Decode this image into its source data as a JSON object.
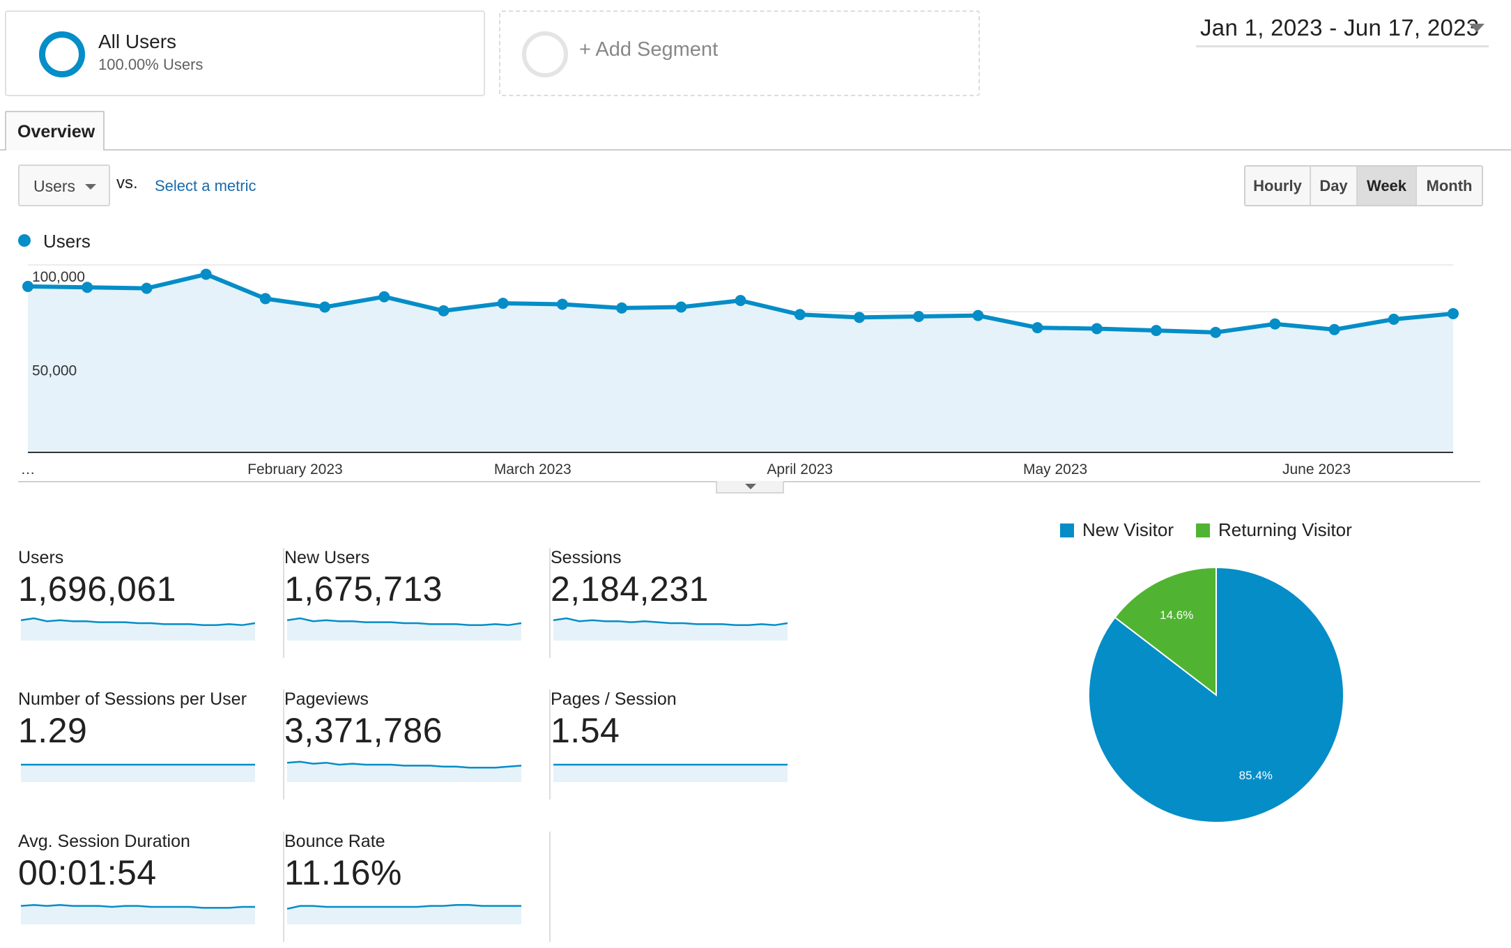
{
  "segments": {
    "all_users": {
      "title": "All Users",
      "subtitle": "100.00% Users"
    },
    "add_segment": {
      "label": "+ Add Segment"
    }
  },
  "date_range": "Jan 1, 2023 - Jun 17, 2023",
  "tabs": [
    {
      "label": "Overview",
      "active": true
    }
  ],
  "metric_selector": {
    "value": "Users",
    "vs": "vs.",
    "select_metric": "Select a metric"
  },
  "granularity": {
    "options": [
      "Hourly",
      "Day",
      "Week",
      "Month"
    ],
    "selected": "Week"
  },
  "colors": {
    "primary": "#058dc7",
    "secondary": "#50b432",
    "area": "#e5f2f9"
  },
  "chart_data": [
    {
      "type": "area",
      "series": [
        {
          "name": "Users",
          "values": [
            88500,
            88000,
            87500,
            95000,
            82000,
            77500,
            83000,
            75500,
            79500,
            79000,
            77000,
            77500,
            81000,
            73500,
            72000,
            72500,
            73000,
            66500,
            66000,
            65000,
            64000,
            68500,
            65500,
            71000,
            74000
          ]
        }
      ],
      "ylim": [
        0,
        100000
      ],
      "y_ticks": [
        "100,000",
        "50,000"
      ],
      "x_ticks": [
        "…",
        "February 2023",
        "March 2023",
        "April 2023",
        "May 2023",
        "June 2023"
      ],
      "grid": true
    },
    {
      "type": "pie",
      "slices": [
        {
          "label": "New Visitor",
          "value": 85.4,
          "display": "85.4%",
          "color": "#058dc7"
        },
        {
          "label": "Returning Visitor",
          "value": 14.6,
          "display": "14.6%",
          "color": "#50b432"
        }
      ],
      "legend_position": "top"
    }
  ],
  "scorecards": [
    {
      "label": "Users",
      "value": "1,696,061",
      "spark": [
        8,
        10,
        7,
        8,
        7,
        7,
        6,
        6,
        6,
        5,
        5,
        4,
        4,
        4,
        3,
        3,
        4,
        3,
        5
      ]
    },
    {
      "label": "New Users",
      "value": "1,675,713",
      "spark": [
        8,
        10,
        7,
        8,
        7,
        7,
        6,
        6,
        6,
        5,
        5,
        4,
        4,
        4,
        3,
        3,
        4,
        3,
        5
      ]
    },
    {
      "label": "Sessions",
      "value": "2,184,231",
      "spark": [
        8,
        10,
        7,
        8,
        7,
        7,
        6,
        7,
        6,
        5,
        5,
        4,
        4,
        4,
        3,
        3,
        4,
        3,
        5
      ]
    },
    {
      "label": "Number of Sessions per User",
      "value": "1.29",
      "spark": [
        5,
        5,
        5,
        5,
        5,
        5,
        5,
        5,
        5,
        5,
        5,
        5,
        5,
        5,
        5,
        5,
        5,
        5,
        5
      ]
    },
    {
      "label": "Pageviews",
      "value": "3,371,786",
      "spark": [
        7,
        8,
        6,
        7,
        5,
        6,
        5,
        5,
        5,
        4,
        4,
        4,
        3,
        3,
        2,
        2,
        2,
        3,
        4
      ]
    },
    {
      "label": "Pages / Session",
      "value": "1.54",
      "spark": [
        5,
        5,
        5,
        5,
        5,
        5,
        5,
        5,
        5,
        5,
        5,
        5,
        5,
        5,
        5,
        5,
        5,
        5,
        5
      ]
    },
    {
      "label": "Avg. Session Duration",
      "value": "00:01:54",
      "spark": [
        6,
        7,
        6,
        7,
        6,
        6,
        6,
        5,
        6,
        6,
        5,
        5,
        5,
        5,
        4,
        4,
        4,
        5,
        5
      ]
    },
    {
      "label": "Bounce Rate",
      "value": "11.16%",
      "spark": [
        3,
        6,
        6,
        5,
        5,
        5,
        5,
        5,
        5,
        5,
        5,
        6,
        6,
        7,
        7,
        6,
        6,
        6,
        6
      ]
    }
  ]
}
